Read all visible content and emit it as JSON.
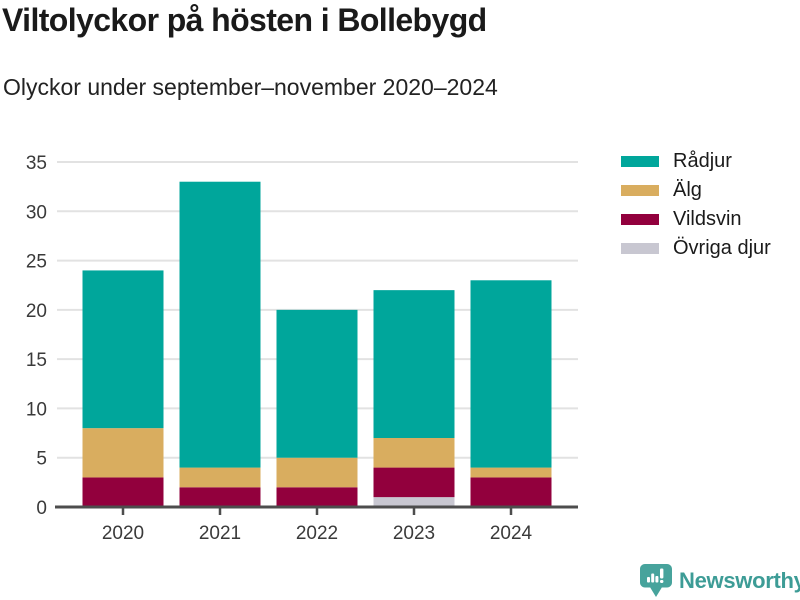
{
  "header": {
    "title": "Viltolyckor på hösten i Bollebygd",
    "subtitle": "Olyckor under september–november 2020–2024"
  },
  "chart_data": {
    "type": "bar",
    "stacked": true,
    "title": "Viltolyckor på hösten i Bollebygd",
    "subtitle": "Olyckor under september–november 2020–2024",
    "categories": [
      "2020",
      "2021",
      "2022",
      "2023",
      "2024"
    ],
    "series": [
      {
        "name": "Rådjur",
        "color": "#00a69b",
        "values": [
          16,
          29,
          15,
          15,
          19
        ]
      },
      {
        "name": "Älg",
        "color": "#d9ad5f",
        "values": [
          5,
          2,
          3,
          3,
          1
        ]
      },
      {
        "name": "Vildsvin",
        "color": "#92003d",
        "values": [
          3,
          2,
          2,
          3,
          3
        ]
      },
      {
        "name": "Övriga djur",
        "color": "#c8c7d1",
        "values": [
          0,
          0,
          0,
          1,
          0
        ]
      }
    ],
    "stack_order_bottom_to_top": [
      "Övriga djur",
      "Vildsvin",
      "Älg",
      "Rådjur"
    ],
    "totals": [
      24,
      33,
      20,
      22,
      23
    ],
    "xlabel": "",
    "ylabel": "",
    "ylim": [
      0,
      35
    ],
    "yticks": [
      0,
      5,
      10,
      15,
      20,
      25,
      30,
      35
    ],
    "grid": true,
    "legend_position": "right",
    "gridline_color": "#e2e2e2",
    "axis_color": "#4d4d4d",
    "tick_label_color": "#3a3a3a"
  },
  "footer": {
    "brand": "Newsworthy",
    "brand_color": "#3d9c96"
  }
}
